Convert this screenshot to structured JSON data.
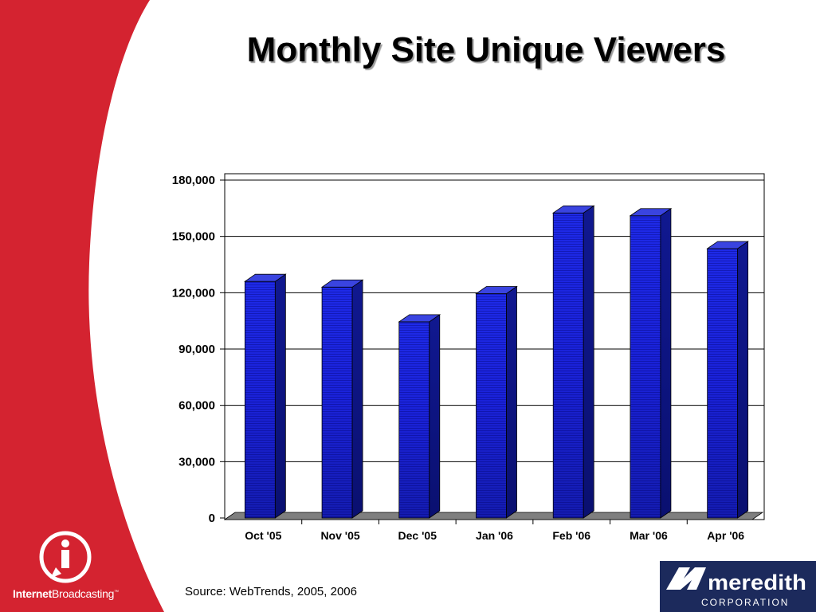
{
  "slide": {
    "title": "Monthly Site Unique Viewers",
    "source": "Source: WebTrends, 2005, 2006",
    "left_logo": {
      "brand_bold": "Internet",
      "brand_regular": "Broadcasting",
      "mark": "™",
      "icon": "info-i-icon"
    },
    "right_logo": {
      "name": "Meredith",
      "subtitle": "CORPORATION"
    },
    "colors": {
      "sidebar_red": "#d42330",
      "bar_blue": "#1a22d8",
      "logo_navy": "#1c2a5c"
    }
  },
  "chart_data": {
    "type": "bar",
    "title": "Monthly Site Unique Viewers",
    "categories": [
      "Oct '05",
      "Nov '05",
      "Dec '05",
      "Jan '06",
      "Feb '06",
      "Mar '06",
      "Apr '06"
    ],
    "values": [
      126000,
      123000,
      104500,
      119500,
      162500,
      161000,
      143500
    ],
    "ylim": [
      0,
      180000
    ],
    "yticks": [
      0,
      30000,
      60000,
      90000,
      120000,
      150000,
      180000
    ],
    "ytick_labels": [
      "0",
      "30,000",
      "60,000",
      "90,000",
      "120,000",
      "150,000",
      "180,000"
    ],
    "xlabel": "",
    "ylabel": "",
    "grid": true,
    "legend": "none",
    "style": "3d-column"
  }
}
